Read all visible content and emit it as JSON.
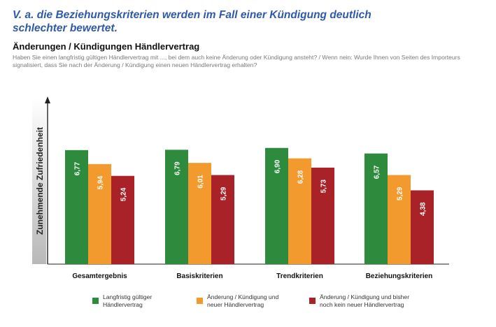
{
  "header": {
    "headline": "V. a. die Beziehungskriterien werden im Fall einer Kündigung deutlich schlechter bewertet.",
    "subtitle": "Änderungen / Kündigungen Händlervertrag",
    "question": "Haben Sie einen langfristig gültigen Händlervertrag mit ..., bei dem auch keine Änderung oder Kündigung ansteht? / Wenn nein: Wurde Ihnen von Seiten des Importeurs signalisiert, dass Sie nach der Änderung / Kündigung einen neuen Händlervertrag erhalten?"
  },
  "chart_data": {
    "type": "bar",
    "ylabel": "Zunehmende Zufriedenheit",
    "categories": [
      "Gesamtergebnis",
      "Basiskriterien",
      "Trendkriterien",
      "Beziehungskriterien"
    ],
    "series": [
      {
        "name": "Langfristig gültiger\nHändlervertrag",
        "color": "#2e8b3e",
        "values": [
          6.77,
          6.79,
          6.9,
          6.57
        ],
        "labels": [
          "6,77",
          "6,79",
          "6,90",
          "6,57"
        ]
      },
      {
        "name": "Änderung / Kündigung und\nneuer Händlervertrag",
        "color": "#f39a2f",
        "values": [
          5.94,
          6.01,
          6.28,
          5.29
        ],
        "labels": [
          "5,94",
          "6,01",
          "6,28",
          "5,29"
        ]
      },
      {
        "name": "Änderung / Kündigung und bisher\nnoch kein neuer Händlervertrag",
        "color": "#a82228",
        "values": [
          5.24,
          5.29,
          5.73,
          4.38
        ],
        "labels": [
          "5,24",
          "5,29",
          "5,73",
          "4,38"
        ]
      }
    ],
    "legend_position": "bottom",
    "grid": false
  }
}
